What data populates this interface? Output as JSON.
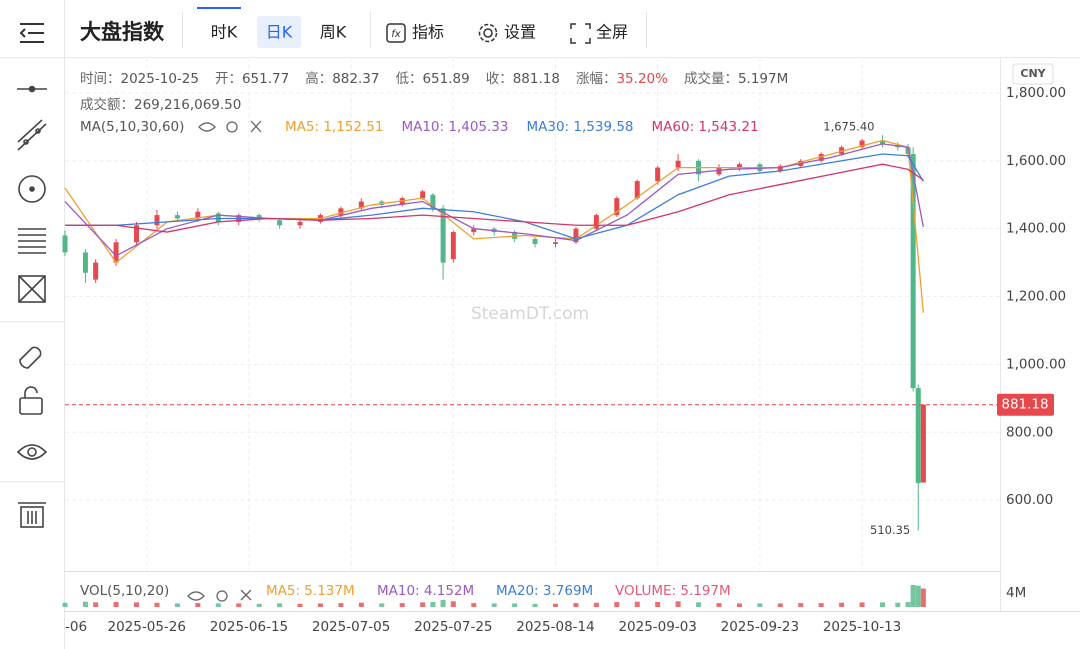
{
  "toolbar": {
    "title": "大盘指数",
    "periods": [
      "时K",
      "日K",
      "周K"
    ],
    "active_period": 1,
    "buttons": [
      "指标",
      "设置",
      "全屏"
    ]
  },
  "info": [
    {
      "label": "时间：",
      "value": "2025-10-25"
    },
    {
      "label": "开：",
      "value": "651.77"
    },
    {
      "label": "高：",
      "value": "882.37"
    },
    {
      "label": "低：",
      "value": "651.89"
    },
    {
      "label": "收：",
      "value": "881.18"
    },
    {
      "label": "涨幅：",
      "value": "35.20%"
    },
    {
      "label": "成交量：",
      "value": "5.197M"
    }
  ],
  "turnover": {
    "label": "成交额：",
    "value": "269,216,069.50"
  },
  "chart_data": {
    "type": "candlestick",
    "currency": "CNY",
    "watermark": "SteamDT.com",
    "up_color": "#e5484d",
    "down_color": "#52b788",
    "grid": true,
    "x": [
      4,
      8,
      10,
      14,
      18,
      22,
      26,
      30,
      34,
      38,
      42,
      46,
      50,
      54,
      58,
      62,
      66,
      70,
      74,
      76,
      78,
      80,
      84,
      88,
      92,
      96,
      100,
      104,
      108,
      112,
      116,
      120,
      124,
      128,
      132,
      136,
      140,
      144,
      148,
      152,
      156,
      160,
      164,
      167,
      169,
      170,
      171,
      172
    ],
    "open": [
      1380,
      1330,
      1250,
      1300,
      1360,
      1410,
      1440,
      1430,
      1445,
      1420,
      1440,
      1425,
      1410,
      1420,
      1440,
      1460,
      1480,
      1470,
      1490,
      1500,
      1460,
      1310,
      1390,
      1400,
      1390,
      1370,
      1355,
      1360,
      1400,
      1440,
      1490,
      1540,
      1580,
      1600,
      1560,
      1580,
      1590,
      1570,
      1585,
      1600,
      1620,
      1640,
      1660,
      1645,
      1640,
      1620,
      930,
      651.77
    ],
    "high": [
      1395,
      1340,
      1310,
      1370,
      1420,
      1455,
      1450,
      1460,
      1450,
      1445,
      1445,
      1430,
      1425,
      1445,
      1465,
      1490,
      1485,
      1495,
      1515,
      1505,
      1470,
      1395,
      1410,
      1405,
      1395,
      1375,
      1370,
      1405,
      1445,
      1495,
      1545,
      1585,
      1620,
      1605,
      1590,
      1595,
      1595,
      1590,
      1605,
      1625,
      1645,
      1665,
      1675.4,
      1655,
      1650,
      1640,
      940,
      882.37
    ],
    "low": [
      1320,
      1240,
      1240,
      1290,
      1350,
      1400,
      1420,
      1420,
      1410,
      1410,
      1420,
      1400,
      1400,
      1415,
      1430,
      1455,
      1460,
      1465,
      1485,
      1450,
      1250,
      1300,
      1380,
      1380,
      1360,
      1345,
      1345,
      1355,
      1395,
      1435,
      1485,
      1530,
      1570,
      1540,
      1555,
      1570,
      1565,
      1565,
      1580,
      1595,
      1615,
      1635,
      1640,
      1630,
      1610,
      920,
      510.35,
      651.89
    ],
    "close": [
      1330,
      1270,
      1300,
      1360,
      1410,
      1440,
      1430,
      1450,
      1420,
      1440,
      1430,
      1410,
      1420,
      1440,
      1460,
      1480,
      1470,
      1490,
      1510,
      1460,
      1300,
      1390,
      1400,
      1390,
      1370,
      1355,
      1360,
      1400,
      1440,
      1490,
      1540,
      1580,
      1600,
      1560,
      1580,
      1590,
      1570,
      1585,
      1600,
      1620,
      1640,
      1660,
      1650,
      1640,
      1620,
      930,
      650,
      881.18
    ],
    "volume": [
      1.2,
      1.5,
      1.3,
      1.4,
      1.3,
      1.2,
      1.0,
      1.1,
      1.0,
      1.0,
      0.9,
      1.0,
      0.9,
      1.0,
      1.1,
      1.2,
      1.0,
      1.1,
      1.3,
      1.4,
      2.0,
      1.6,
      1.1,
      1.0,
      1.0,
      0.9,
      0.9,
      1.1,
      1.2,
      1.4,
      1.5,
      1.4,
      1.6,
      1.3,
      1.1,
      1.0,
      1.0,
      1.0,
      1.1,
      1.1,
      1.2,
      1.3,
      1.3,
      1.2,
      1.4,
      6.2,
      6.0,
      5.197
    ],
    "xlim": [
      4,
      187
    ],
    "ylim": [
      394,
      1906
    ],
    "y2lim": [
      0,
      9
    ],
    "xticks": [
      {
        "value": 0,
        "label": "-06"
      },
      {
        "value": 20,
        "label": "2025-05-26"
      },
      {
        "value": 40,
        "label": "2025-06-15"
      },
      {
        "value": 60,
        "label": "2025-07-05"
      },
      {
        "value": 80,
        "label": "2025-07-25"
      },
      {
        "value": 100,
        "label": "2025-08-14"
      },
      {
        "value": 120,
        "label": "2025-09-03"
      },
      {
        "value": 140,
        "label": "2025-09-23"
      },
      {
        "value": 160,
        "label": "2025-10-13"
      }
    ],
    "yticks": [
      {
        "value": 600,
        "label": "600.00"
      },
      {
        "value": 800,
        "label": "800.00"
      },
      {
        "value": 1000,
        "label": "1,000.00"
      },
      {
        "value": 1200,
        "label": "1,200.00"
      },
      {
        "value": 1400,
        "label": "1,400.00"
      },
      {
        "value": 1600,
        "label": "1,600.00"
      },
      {
        "value": 1800,
        "label": "1,800.00"
      }
    ],
    "y2ticks": [
      {
        "value": 4,
        "label": "4M"
      }
    ],
    "last_price": {
      "value": 881.18,
      "label": "881.18"
    },
    "annotations": [
      {
        "x": 164,
        "value": 1675.4,
        "label": "1,675.40"
      },
      {
        "x": 171,
        "value": 510.35,
        "label": "510.35"
      }
    ],
    "ma_legend": "MA(5,10,30,60)",
    "ma_series": [
      {
        "name": "MA5",
        "label": "MA5: 1,152.51",
        "color": "#f0a030",
        "x": [
          4,
          14,
          24,
          34,
          44,
          54,
          64,
          74,
          84,
          94,
          104,
          114,
          124,
          134,
          144,
          154,
          164,
          169,
          172
        ],
        "values": [
          1520,
          1300,
          1420,
          1440,
          1430,
          1430,
          1470,
          1490,
          1370,
          1380,
          1370,
          1470,
          1580,
          1580,
          1580,
          1620,
          1660,
          1640,
          1152.51
        ]
      },
      {
        "name": "MA10",
        "label": "MA10: 1,405.33",
        "color": "#9b59c6",
        "x": [
          4,
          14,
          24,
          34,
          44,
          54,
          64,
          74,
          84,
          94,
          104,
          114,
          124,
          134,
          144,
          154,
          164,
          169,
          172
        ],
        "values": [
          1480,
          1320,
          1400,
          1440,
          1430,
          1425,
          1460,
          1480,
          1400,
          1385,
          1365,
          1440,
          1560,
          1575,
          1580,
          1610,
          1650,
          1640,
          1405.33
        ]
      },
      {
        "name": "MA30",
        "label": "MA30: 1,539.58",
        "color": "#3b7ddd",
        "x": [
          4,
          14,
          24,
          34,
          44,
          54,
          64,
          74,
          84,
          94,
          104,
          114,
          124,
          134,
          144,
          154,
          164,
          169,
          172
        ],
        "values": [
          1410,
          1410,
          1420,
          1430,
          1430,
          1425,
          1440,
          1460,
          1450,
          1420,
          1370,
          1410,
          1500,
          1555,
          1570,
          1595,
          1620,
          1615,
          1539.58
        ]
      },
      {
        "name": "MA60",
        "label": "MA60: 1,543.21",
        "color": "#d6336c",
        "x": [
          4,
          14,
          24,
          34,
          44,
          54,
          64,
          74,
          84,
          94,
          104,
          114,
          124,
          134,
          144,
          154,
          164,
          169,
          172
        ],
        "values": [
          1410,
          1410,
          1390,
          1420,
          1430,
          1425,
          1430,
          1440,
          1430,
          1420,
          1410,
          1410,
          1450,
          1500,
          1530,
          1560,
          1590,
          1575,
          1543.21
        ]
      }
    ],
    "vol_legend": "VOL(5,10,20)",
    "vol_series": [
      {
        "label": "MA5: 5.137M",
        "color": "#f0a030"
      },
      {
        "label": "MA10: 4.152M",
        "color": "#9b59c6"
      },
      {
        "label": "MA20: 3.769M",
        "color": "#3b7ddd"
      },
      {
        "label": "VOLUME: 5.197M",
        "color": "#e5577a"
      }
    ]
  }
}
